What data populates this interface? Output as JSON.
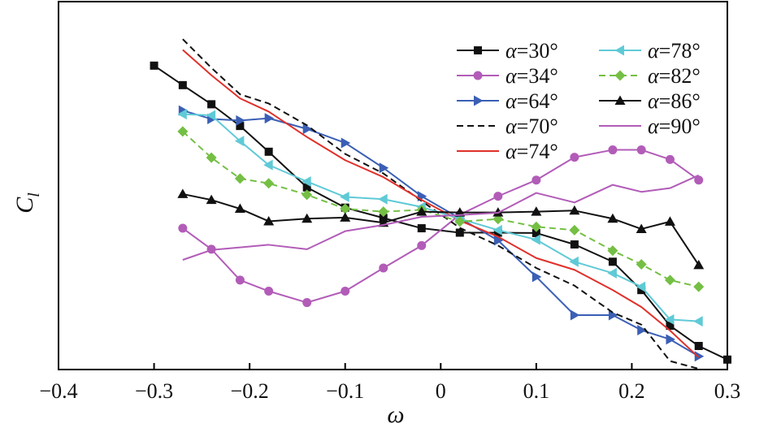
{
  "chart_data": {
    "type": "line",
    "title": "",
    "xlabel": "ω",
    "ylabel_main": "C",
    "ylabel_sub": "l",
    "xlim": [
      -0.4,
      0.3
    ],
    "ylim": [
      0,
      100
    ],
    "y_ticks_labeled": false,
    "grid": false,
    "legend_position": "top-right",
    "x_ticks": [
      -0.4,
      -0.3,
      -0.2,
      -0.1,
      0,
      0.1,
      0.2,
      0.3
    ],
    "x_tick_labels": [
      "−0.4",
      "−0.3",
      "−0.2",
      "−0.1",
      "0",
      "0.1",
      "0.2",
      "0.3"
    ],
    "series": [
      {
        "name": "α=30°",
        "color": "#111111",
        "dash": "",
        "marker": "square",
        "x": [
          -0.3,
          -0.27,
          -0.24,
          -0.21,
          -0.18,
          -0.14,
          -0.1,
          -0.06,
          -0.02,
          0.02,
          0.06,
          0.1,
          0.14,
          0.18,
          0.21,
          0.24,
          0.27,
          0.3
        ],
        "y": [
          82.6,
          77.3,
          72.1,
          66.2,
          59.2,
          49.5,
          44,
          41.2,
          38.4,
          37.2,
          37.2,
          37.1,
          34,
          29.3,
          21.6,
          11.9,
          6.4,
          2.7
        ]
      },
      {
        "name": "α=34°",
        "color": "#b25cb8",
        "dash": "",
        "marker": "circle",
        "x": [
          -0.27,
          -0.24,
          -0.21,
          -0.18,
          -0.14,
          -0.1,
          -0.06,
          -0.02,
          0.02,
          0.06,
          0.1,
          0.14,
          0.18,
          0.21,
          0.24,
          0.27
        ],
        "y": [
          38.4,
          32.7,
          24.3,
          21.3,
          18.2,
          21.3,
          27.6,
          33.7,
          42.1,
          47.1,
          51.5,
          57.7,
          59.7,
          59.7,
          57.1,
          51.5
        ]
      },
      {
        "name": "α=64°",
        "color": "#3a5fb5",
        "dash": "",
        "marker": "triangle-right",
        "x": [
          -0.27,
          -0.24,
          -0.21,
          -0.18,
          -0.14,
          -0.1,
          -0.06,
          -0.02,
          0.02,
          0.06,
          0.1,
          0.14,
          0.18,
          0.21,
          0.24,
          0.27
        ],
        "y": [
          70.4,
          68.1,
          67.7,
          68.3,
          65.4,
          61.6,
          54.8,
          47.1,
          41.1,
          35.1,
          25.2,
          14.8,
          14.8,
          10.7,
          8.2,
          3.6
        ]
      },
      {
        "name": "α=70°",
        "color": "#111111",
        "dash": "8,5",
        "marker": "none",
        "x": [
          -0.27,
          -0.24,
          -0.21,
          -0.18,
          -0.14,
          -0.1,
          -0.06,
          -0.02,
          0.02,
          0.06,
          0.1,
          0.14,
          0.18,
          0.21,
          0.24,
          0.27
        ],
        "y": [
          89.8,
          82,
          74.8,
          72.3,
          66.4,
          58.6,
          53.3,
          45.8,
          38.5,
          33.7,
          27.6,
          22.8,
          15.5,
          12.2,
          2.3,
          0.2
        ]
      },
      {
        "name": "α=74°",
        "color": "#e0302a",
        "dash": "",
        "marker": "none",
        "x": [
          -0.27,
          -0.24,
          -0.21,
          -0.18,
          -0.14,
          -0.1,
          -0.06,
          -0.02,
          0.02,
          0.06,
          0.1,
          0.14,
          0.18,
          0.21,
          0.24,
          0.27
        ],
        "y": [
          86.9,
          80,
          73.7,
          70.1,
          63.2,
          56.9,
          52.3,
          46.1,
          40.5,
          36.1,
          30.3,
          27.1,
          21.6,
          17,
          10.6,
          3.3
        ]
      },
      {
        "name": "α=78°",
        "color": "#5fcad6",
        "dash": "",
        "marker": "triangle-left",
        "x": [
          -0.27,
          -0.24,
          -0.21,
          -0.18,
          -0.14,
          -0.1,
          -0.06,
          -0.02,
          0.02,
          0.06,
          0.1,
          0.14,
          0.18,
          0.21,
          0.24,
          0.27
        ],
        "y": [
          69.4,
          69.1,
          62.1,
          55.6,
          51.1,
          46.9,
          46.3,
          44.2,
          41,
          37.9,
          35.3,
          29.3,
          26.2,
          22.5,
          13.6,
          13.1
        ]
      },
      {
        "name": "α=82°",
        "color": "#74bf44",
        "dash": "8,5",
        "marker": "diamond",
        "x": [
          -0.27,
          -0.24,
          -0.21,
          -0.18,
          -0.14,
          -0.1,
          -0.06,
          -0.02,
          0.02,
          0.06,
          0.1,
          0.14,
          0.18,
          0.21,
          0.24,
          0.27
        ],
        "y": [
          64.7,
          57.6,
          51.9,
          50.6,
          47.5,
          43.7,
          42.9,
          43.4,
          40.2,
          40.9,
          38.8,
          37.9,
          32.3,
          28.6,
          24.3,
          22.5
        ]
      },
      {
        "name": "α=86°",
        "color": "#111111",
        "dash": "",
        "marker": "triangle-up",
        "x": [
          -0.27,
          -0.24,
          -0.21,
          -0.18,
          -0.14,
          -0.1,
          -0.06,
          -0.02,
          0.02,
          0.06,
          0.1,
          0.14,
          0.18,
          0.21,
          0.24,
          0.27
        ],
        "y": [
          47.7,
          46.1,
          43.7,
          40.3,
          41,
          41.3,
          39.9,
          42.9,
          42.7,
          42.7,
          42.9,
          43.2,
          41,
          38.2,
          40.2,
          28.4
        ]
      },
      {
        "name": "α=90°",
        "color": "#b25cb8",
        "dash": "",
        "marker": "none",
        "x": [
          -0.27,
          -0.24,
          -0.21,
          -0.18,
          -0.14,
          -0.1,
          -0.06,
          -0.02,
          0.02,
          0.06,
          0.1,
          0.14,
          0.18,
          0.21,
          0.24,
          0.27
        ],
        "y": [
          29.8,
          32.5,
          33.2,
          33.9,
          32.7,
          37.6,
          39.3,
          41.5,
          42,
          42.6,
          48,
          45.4,
          50.2,
          48.3,
          49.3,
          52.8
        ]
      }
    ]
  }
}
